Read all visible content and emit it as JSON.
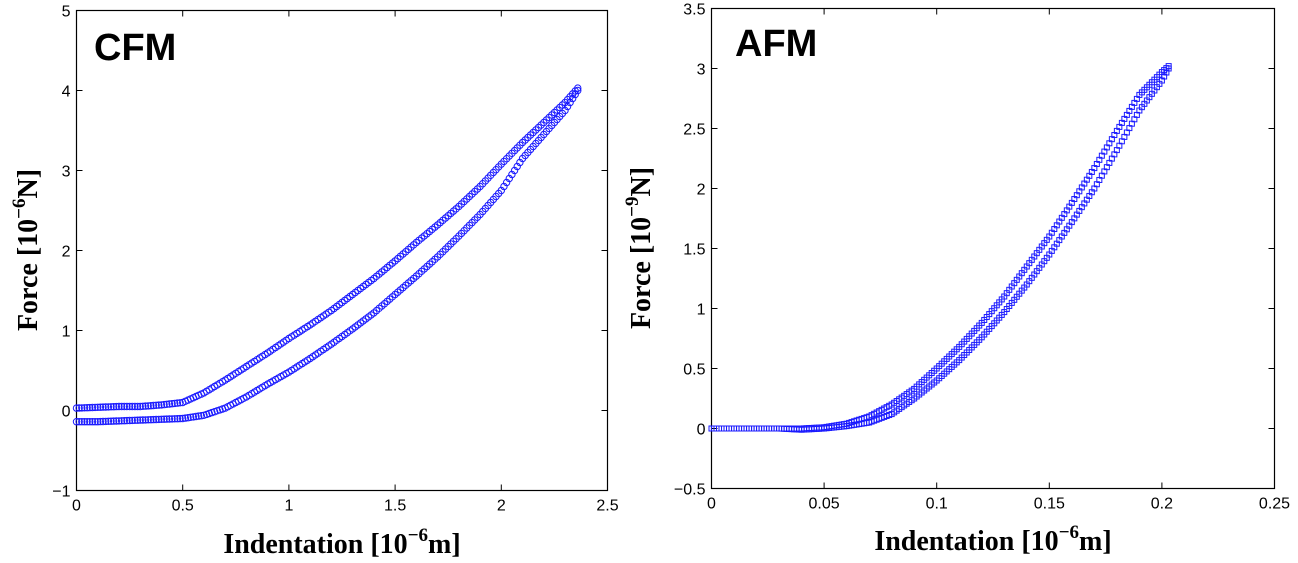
{
  "chart_data": [
    {
      "type": "scatter",
      "title": "CFM",
      "xlabel": {
        "base": "Indentation [10",
        "exp": "−6",
        "unit": "m]"
      },
      "ylabel": {
        "base": "Force [10",
        "exp": "−6",
        "unit": "N]"
      },
      "xlim": [
        0,
        2.5
      ],
      "ylim": [
        -1,
        5
      ],
      "xticks": [
        "0",
        "0.5",
        "1",
        "1.5",
        "2",
        "2.5"
      ],
      "xtick_values": [
        0,
        0.5,
        1,
        1.5,
        2,
        2.5
      ],
      "yticks": [
        "−1",
        "0",
        "1",
        "2",
        "3",
        "4",
        "5"
      ],
      "ytick_values": [
        -1,
        0,
        1,
        2,
        3,
        4,
        5
      ],
      "grid": false,
      "marker": "circle",
      "color": "#1a1aff",
      "series": [
        {
          "x": [
            0,
            0.1,
            0.2,
            0.3,
            0.4,
            0.5,
            0.6,
            0.7,
            0.8,
            0.9,
            1.0,
            1.1,
            1.2,
            1.3,
            1.4,
            1.5,
            1.6,
            1.7,
            1.8,
            1.9,
            2.0,
            2.1,
            2.2,
            2.3,
            2.36
          ],
          "y": [
            0.03,
            0.04,
            0.05,
            0.05,
            0.07,
            0.1,
            0.22,
            0.38,
            0.55,
            0.72,
            0.9,
            1.07,
            1.25,
            1.45,
            1.65,
            1.87,
            2.1,
            2.32,
            2.55,
            2.8,
            3.08,
            3.35,
            3.6,
            3.85,
            4.03
          ]
        },
        {
          "x": [
            0,
            0.1,
            0.2,
            0.3,
            0.4,
            0.5,
            0.6,
            0.7,
            0.8,
            0.9,
            1.0,
            1.1,
            1.2,
            1.3,
            1.4,
            1.5,
            1.6,
            1.7,
            1.8,
            1.9,
            2.0,
            2.1,
            2.2,
            2.3,
            2.36
          ],
          "y": [
            -0.14,
            -0.14,
            -0.13,
            -0.12,
            -0.11,
            -0.1,
            -0.06,
            0.03,
            0.17,
            0.33,
            0.48,
            0.65,
            0.83,
            1.02,
            1.22,
            1.45,
            1.68,
            1.92,
            2.18,
            2.45,
            2.75,
            3.15,
            3.45,
            3.75,
            4.0
          ]
        }
      ]
    },
    {
      "type": "scatter",
      "title": "AFM",
      "xlabel": {
        "base": "Indentation [10",
        "exp": "−6",
        "unit": "m]"
      },
      "ylabel": {
        "base": "Force [10",
        "exp": "−9",
        "unit": "N]"
      },
      "xlim": [
        0,
        0.25
      ],
      "ylim": [
        -0.5,
        3.5
      ],
      "xticks": [
        "0",
        "0.05",
        "0.1",
        "0.15",
        "0.2",
        "0.25"
      ],
      "xtick_values": [
        0,
        0.05,
        0.1,
        0.15,
        0.2,
        0.25
      ],
      "yticks": [
        "−0.5",
        "0",
        "0.5",
        "1",
        "1.5",
        "2",
        "2.5",
        "3",
        "3.5"
      ],
      "ytick_values": [
        -0.5,
        0,
        0.5,
        1,
        1.5,
        2,
        2.5,
        3,
        3.5
      ],
      "grid": false,
      "marker": "square",
      "color": "#1a1aff",
      "series": [
        {
          "x": [
            0,
            0.01,
            0.02,
            0.03,
            0.04,
            0.05,
            0.06,
            0.07,
            0.08,
            0.09,
            0.1,
            0.11,
            0.12,
            0.13,
            0.14,
            0.15,
            0.16,
            0.17,
            0.18,
            0.19,
            0.2,
            0.203
          ],
          "y": [
            0,
            0,
            0,
            0,
            0.0,
            0.01,
            0.04,
            0.1,
            0.2,
            0.33,
            0.5,
            0.68,
            0.88,
            1.1,
            1.35,
            1.6,
            1.88,
            2.17,
            2.48,
            2.78,
            2.97,
            3.02
          ]
        },
        {
          "x": [
            0,
            0.01,
            0.02,
            0.03,
            0.04,
            0.05,
            0.06,
            0.07,
            0.08,
            0.09,
            0.1,
            0.11,
            0.12,
            0.13,
            0.14,
            0.15,
            0.16,
            0.17,
            0.18,
            0.19,
            0.2,
            0.203
          ],
          "y": [
            0,
            0,
            0,
            0,
            -0.01,
            0.0,
            0.02,
            0.05,
            0.12,
            0.25,
            0.4,
            0.57,
            0.76,
            0.97,
            1.2,
            1.45,
            1.72,
            2.0,
            2.32,
            2.65,
            2.9,
            3.0
          ]
        }
      ]
    }
  ]
}
